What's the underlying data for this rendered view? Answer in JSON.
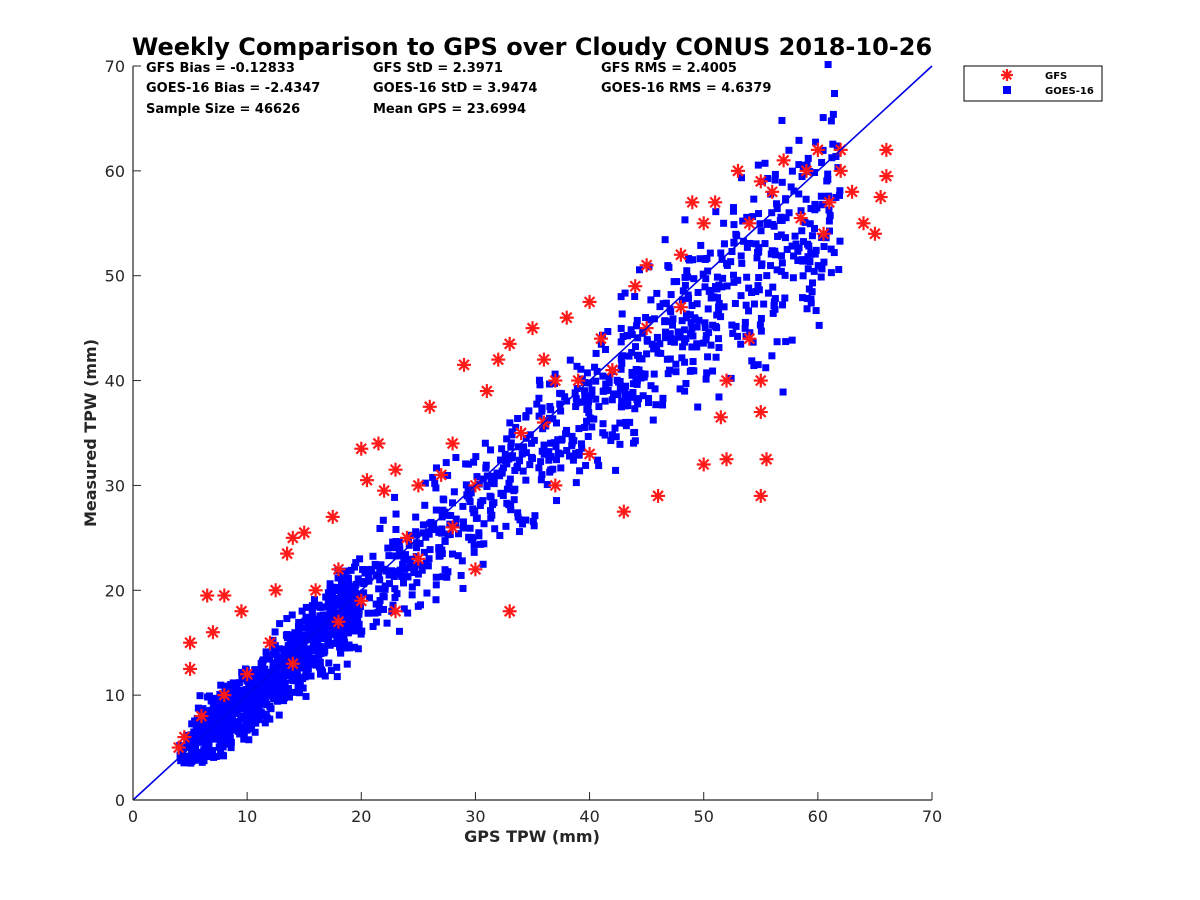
{
  "chart_data": {
    "type": "scatter",
    "title": "Weekly Comparison to GPS over Cloudy CONUS 2018-10-26",
    "xlabel": "GPS TPW (mm)",
    "ylabel": "Measured TPW (mm)",
    "xlim": [
      0,
      70
    ],
    "ylim": [
      0,
      70
    ],
    "x_ticks": [
      "0",
      "10",
      "20",
      "30",
      "40",
      "50",
      "60",
      "70"
    ],
    "y_ticks": [
      "0",
      "10",
      "20",
      "30",
      "40",
      "50",
      "60",
      "70"
    ],
    "grid": false,
    "legend_position": "outside top-right",
    "stats": [
      "GFS Bias = -0.12833",
      "GFS StD = 2.3971",
      "GFS RMS = 2.4005",
      "GOES-16 Bias = -2.4347",
      "GOES-16 StD = 3.9474",
      "GOES-16 RMS = 4.6379",
      "Sample Size = 46626",
      "Mean GPS = 23.6994"
    ],
    "one_to_one_line": {
      "x": [
        0,
        70
      ],
      "y": [
        0,
        70
      ],
      "color": "#0000e6"
    },
    "series": [
      {
        "name": "GFS",
        "marker": "asterisk",
        "color": "#ff1a1a",
        "points": [
          [
            4,
            5
          ],
          [
            5,
            15
          ],
          [
            5,
            12.5
          ],
          [
            6.5,
            19.5
          ],
          [
            7,
            16
          ],
          [
            8,
            19.5
          ],
          [
            9.5,
            18
          ],
          [
            12.5,
            20
          ],
          [
            14,
            25
          ],
          [
            15,
            25.5
          ],
          [
            13.5,
            23.5
          ],
          [
            17.5,
            27
          ],
          [
            20,
            33.5
          ],
          [
            21.5,
            34
          ],
          [
            20.5,
            30.5
          ],
          [
            23,
            31.5
          ],
          [
            22,
            29.5
          ],
          [
            26,
            37.5
          ],
          [
            28,
            34
          ],
          [
            29,
            41.5
          ],
          [
            32,
            42
          ],
          [
            33,
            43.5
          ],
          [
            35,
            45
          ],
          [
            36,
            42
          ],
          [
            38,
            46
          ],
          [
            39,
            40
          ],
          [
            40,
            47.5
          ],
          [
            42,
            41
          ],
          [
            44,
            49
          ],
          [
            45,
            45
          ],
          [
            48,
            52
          ],
          [
            50,
            55
          ],
          [
            51,
            57
          ],
          [
            53,
            60
          ],
          [
            55,
            59
          ],
          [
            57,
            61
          ],
          [
            59,
            60
          ],
          [
            60,
            62
          ],
          [
            61,
            57
          ],
          [
            62,
            60
          ],
          [
            63,
            58
          ],
          [
            64,
            55
          ],
          [
            65,
            54
          ],
          [
            65.5,
            57.5
          ],
          [
            66,
            62
          ],
          [
            66,
            59.5
          ],
          [
            62,
            62
          ],
          [
            60.5,
            54
          ],
          [
            58.5,
            55.5
          ],
          [
            56,
            58
          ],
          [
            54,
            44
          ],
          [
            55,
            40
          ],
          [
            55,
            37
          ],
          [
            55.5,
            32.5
          ],
          [
            55,
            29
          ],
          [
            52,
            32.5
          ],
          [
            50,
            32
          ],
          [
            51.5,
            36.5
          ],
          [
            52,
            40
          ],
          [
            46,
            29
          ],
          [
            43,
            27.5
          ],
          [
            40,
            33
          ],
          [
            37,
            30
          ],
          [
            33,
            18
          ],
          [
            30,
            22
          ],
          [
            28,
            26
          ],
          [
            25,
            23
          ],
          [
            23,
            18
          ],
          [
            20,
            19
          ],
          [
            18,
            22
          ],
          [
            16,
            20
          ],
          [
            12,
            15
          ],
          [
            10,
            12
          ],
          [
            8,
            10
          ],
          [
            6,
            8
          ],
          [
            4.5,
            6
          ],
          [
            14,
            13
          ],
          [
            18,
            17
          ],
          [
            24,
            25
          ],
          [
            30,
            30
          ],
          [
            36,
            36
          ],
          [
            42,
            41
          ],
          [
            48,
            47
          ],
          [
            54,
            55
          ],
          [
            49,
            57
          ],
          [
            45,
            51
          ],
          [
            41,
            44
          ],
          [
            37,
            40
          ],
          [
            34,
            35
          ],
          [
            31,
            39
          ],
          [
            27,
            31
          ],
          [
            25,
            30
          ]
        ]
      },
      {
        "name": "GOES-16",
        "marker": "square",
        "color": "#0000ff"
      }
    ]
  }
}
